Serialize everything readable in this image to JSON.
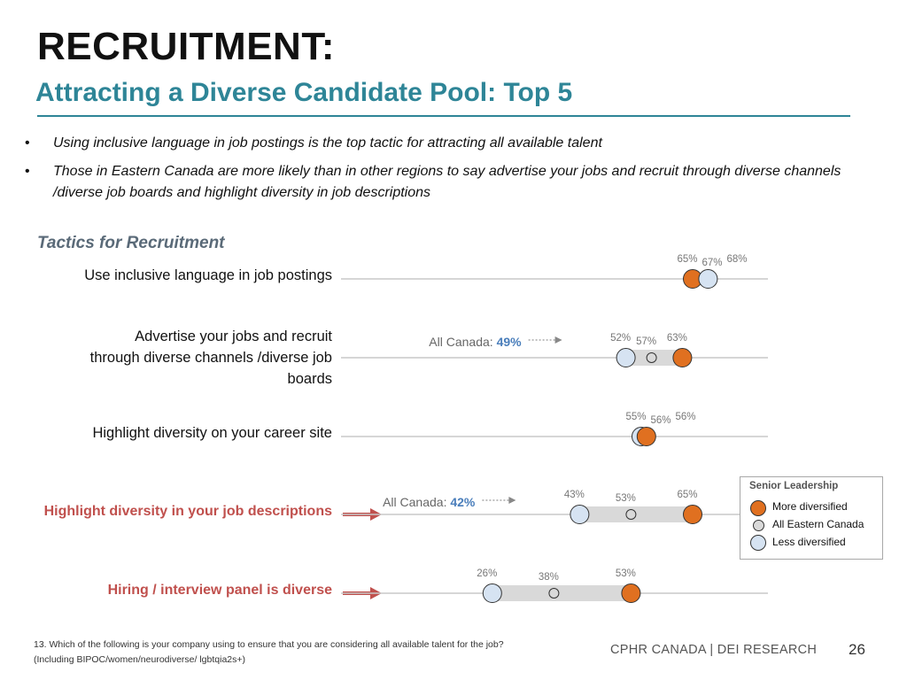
{
  "header": {
    "title": "RECRUITMENT:",
    "subtitle": "Attracting a Diverse Candidate Pool: Top 5"
  },
  "bullets": [
    "Using inclusive language in job postings is the top tactic for attracting all available talent",
    "Those in Eastern Canada are more likely than in other regions to say advertise your jobs and recruit through diverse channels /diverse job boards and highlight diversity in job descriptions"
  ],
  "bullet_marker": "•",
  "section_label": "Tactics for Recruitment",
  "legend": {
    "title": "Senior Leadership",
    "items": [
      {
        "label": "More diversified",
        "color": "#e07020"
      },
      {
        "label": "All Eastern Canada",
        "color": "#d9d9d9"
      },
      {
        "label": "Less diversified",
        "color": "#d6e3f2"
      }
    ]
  },
  "colors": {
    "more": "#e07020",
    "all": "#d9d9d9",
    "less": "#d6e3f2",
    "range_bar": "#d9d9d9",
    "highlight_label": "#c0504d",
    "arrow": "#c0504d",
    "all_canada_value": "#4a7ebb",
    "axis_line": "#c8c8c8"
  },
  "chart_data": {
    "type": "dot-range",
    "series": [
      {
        "name": "More diversified"
      },
      {
        "name": "All Eastern Canada"
      },
      {
        "name": "Less diversified"
      }
    ],
    "rows": [
      {
        "category": "Use inclusive language in job postings",
        "more": 65,
        "all": 67,
        "less": 68,
        "highlight": false,
        "all_canada": null
      },
      {
        "category": "Advertise your jobs and recruit through diverse channels /diverse job boards",
        "more": 63,
        "all": 57,
        "less": 52,
        "highlight": false,
        "all_canada": "49%"
      },
      {
        "category": "Highlight diversity on your career site",
        "more": 56,
        "all": 56,
        "less": 55,
        "highlight": false,
        "all_canada": null
      },
      {
        "category": "Highlight diversity in your job descriptions",
        "more": 65,
        "all": 53,
        "less": 43,
        "highlight": true,
        "all_canada": "42%"
      },
      {
        "category": "Hiring / interview panel is diverse",
        "more": 53,
        "all": 38,
        "less": 26,
        "highlight": true,
        "all_canada": null
      }
    ],
    "all_canada_prefix": "All Canada: ",
    "value_suffix": "%"
  },
  "footer": {
    "footnote_line1": "13. Which of the following is your company using to ensure that you are considering all available talent for the job?",
    "footnote_line2": "(Including BIPOC/women/neurodiverse/ lgbtqia2s+)",
    "brand": "CPHR CANADA | DEI RESEARCH",
    "page_number": "26"
  }
}
